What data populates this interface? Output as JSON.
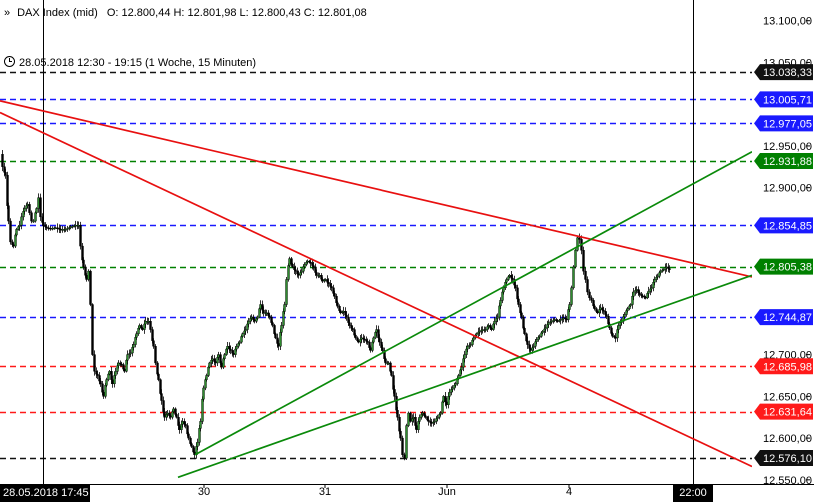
{
  "header": {
    "chevron": "»",
    "instrument": "DAX Index (mid)",
    "ohlc": "O: 12.800,44  H: 12.801,98  L: 12.800,43  C: 12.801,08",
    "range": "28.05.2018 12:30 - 19:15  (1 Woche, 15 Minuten)"
  },
  "chart_data": {
    "type": "candlestick",
    "instrument": "DAX Index (mid)",
    "timeframe": "15 Minuten",
    "ylim": [
      12545,
      13120
    ],
    "y_ticks": [
      "13.100,00",
      "13.050,00",
      "12.950,00",
      "12.900,00",
      "12.700,00",
      "12.650,00",
      "12.600,00",
      "12.550,00"
    ],
    "x_ticks": [
      "30",
      "31",
      "Jun",
      "4"
    ],
    "crosshair": {
      "date_label": "28.05.2018 17:45",
      "time_label": "22:00"
    },
    "price_path": [
      [
        0,
        12940
      ],
      [
        2,
        12925
      ],
      [
        5,
        12915
      ],
      [
        8,
        12860
      ],
      [
        10,
        12835
      ],
      [
        13,
        12830
      ],
      [
        16,
        12850
      ],
      [
        19,
        12855
      ],
      [
        21,
        12865
      ],
      [
        24,
        12875
      ],
      [
        27,
        12880
      ],
      [
        29,
        12870
      ],
      [
        31,
        12860
      ],
      [
        33,
        12860
      ],
      [
        36,
        12875
      ],
      [
        38,
        12888
      ],
      [
        40,
        12865
      ],
      [
        43,
        12855
      ],
      [
        46,
        12852
      ],
      [
        50,
        12851
      ],
      [
        55,
        12852
      ],
      [
        60,
        12850
      ],
      [
        65,
        12850
      ],
      [
        70,
        12853
      ],
      [
        75,
        12855
      ],
      [
        78,
        12855
      ],
      [
        80,
        12830
      ],
      [
        83,
        12805
      ],
      [
        86,
        12790
      ],
      [
        88,
        12800
      ],
      [
        90,
        12760
      ],
      [
        92,
        12700
      ],
      [
        94,
        12680
      ],
      [
        97,
        12675
      ],
      [
        100,
        12665
      ],
      [
        103,
        12650
      ],
      [
        106,
        12670
      ],
      [
        109,
        12680
      ],
      [
        112,
        12665
      ],
      [
        115,
        12680
      ],
      [
        118,
        12690
      ],
      [
        121,
        12688
      ],
      [
        124,
        12680
      ],
      [
        127,
        12700
      ],
      [
        130,
        12702
      ],
      [
        133,
        12712
      ],
      [
        136,
        12725
      ],
      [
        139,
        12735
      ],
      [
        142,
        12730
      ],
      [
        145,
        12740
      ],
      [
        148,
        12740
      ],
      [
        150,
        12730
      ],
      [
        153,
        12710
      ],
      [
        155,
        12690
      ],
      [
        158,
        12670
      ],
      [
        161,
        12645
      ],
      [
        164,
        12625
      ],
      [
        167,
        12630
      ],
      [
        170,
        12625
      ],
      [
        173,
        12635
      ],
      [
        176,
        12625
      ],
      [
        179,
        12610
      ],
      [
        182,
        12620
      ],
      [
        185,
        12615
      ],
      [
        188,
        12600
      ],
      [
        191,
        12590
      ],
      [
        194,
        12580
      ],
      [
        197,
        12595
      ],
      [
        200,
        12620
      ],
      [
        203,
        12660
      ],
      [
        206,
        12675
      ],
      [
        209,
        12690
      ],
      [
        212,
        12695
      ],
      [
        215,
        12690
      ],
      [
        218,
        12700
      ],
      [
        221,
        12685
      ],
      [
        224,
        12700
      ],
      [
        227,
        12710
      ],
      [
        230,
        12705
      ],
      [
        233,
        12700
      ],
      [
        236,
        12710
      ],
      [
        239,
        12715
      ],
      [
        242,
        12725
      ],
      [
        245,
        12730
      ],
      [
        248,
        12740
      ],
      [
        251,
        12745
      ],
      [
        254,
        12740
      ],
      [
        257,
        12745
      ],
      [
        260,
        12760
      ],
      [
        263,
        12750
      ],
      [
        266,
        12750
      ],
      [
        269,
        12745
      ],
      [
        272,
        12735
      ],
      [
        275,
        12720
      ],
      [
        278,
        12710
      ],
      [
        281,
        12735
      ],
      [
        284,
        12760
      ],
      [
        286,
        12790
      ],
      [
        289,
        12815
      ],
      [
        292,
        12805
      ],
      [
        295,
        12800
      ],
      [
        298,
        12795
      ],
      [
        301,
        12800
      ],
      [
        304,
        12808
      ],
      [
        307,
        12812
      ],
      [
        310,
        12810
      ],
      [
        313,
        12805
      ],
      [
        316,
        12795
      ],
      [
        319,
        12795
      ],
      [
        322,
        12788
      ],
      [
        325,
        12790
      ],
      [
        328,
        12785
      ],
      [
        331,
        12780
      ],
      [
        334,
        12770
      ],
      [
        337,
        12758
      ],
      [
        340,
        12750
      ],
      [
        343,
        12752
      ],
      [
        346,
        12745
      ],
      [
        349,
        12735
      ],
      [
        352,
        12730
      ],
      [
        355,
        12720
      ],
      [
        358,
        12715
      ],
      [
        361,
        12720
      ],
      [
        364,
        12718
      ],
      [
        367,
        12715
      ],
      [
        370,
        12705
      ],
      [
        373,
        12720
      ],
      [
        376,
        12730
      ],
      [
        379,
        12715
      ],
      [
        382,
        12705
      ],
      [
        385,
        12690
      ],
      [
        388,
        12690
      ],
      [
        391,
        12675
      ],
      [
        394,
        12650
      ],
      [
        397,
        12625
      ],
      [
        400,
        12600
      ],
      [
        402,
        12580
      ],
      [
        404,
        12576
      ],
      [
        406,
        12615
      ],
      [
        408,
        12630
      ],
      [
        410,
        12620
      ],
      [
        413,
        12625
      ],
      [
        416,
        12610
      ],
      [
        419,
        12625
      ],
      [
        422,
        12630
      ],
      [
        425,
        12625
      ],
      [
        428,
        12620
      ],
      [
        431,
        12618
      ],
      [
        434,
        12620
      ],
      [
        437,
        12625
      ],
      [
        440,
        12630
      ],
      [
        443,
        12650
      ],
      [
        446,
        12640
      ],
      [
        449,
        12655
      ],
      [
        452,
        12660
      ],
      [
        455,
        12665
      ],
      [
        458,
        12675
      ],
      [
        461,
        12685
      ],
      [
        464,
        12700
      ],
      [
        467,
        12710
      ],
      [
        470,
        12712
      ],
      [
        473,
        12720
      ],
      [
        476,
        12725
      ],
      [
        479,
        12728
      ],
      [
        482,
        12730
      ],
      [
        485,
        12730
      ],
      [
        488,
        12735
      ],
      [
        491,
        12730
      ],
      [
        494,
        12740
      ],
      [
        497,
        12745
      ],
      [
        500,
        12765
      ],
      [
        503,
        12780
      ],
      [
        506,
        12790
      ],
      [
        509,
        12795
      ],
      [
        512,
        12790
      ],
      [
        515,
        12780
      ],
      [
        518,
        12760
      ],
      [
        521,
        12745
      ],
      [
        524,
        12725
      ],
      [
        527,
        12712
      ],
      [
        530,
        12705
      ],
      [
        533,
        12710
      ],
      [
        536,
        12718
      ],
      [
        539,
        12722
      ],
      [
        542,
        12728
      ],
      [
        545,
        12732
      ],
      [
        548,
        12738
      ],
      [
        551,
        12740
      ],
      [
        554,
        12742
      ],
      [
        557,
        12740
      ],
      [
        560,
        12742
      ],
      [
        563,
        12744
      ],
      [
        566,
        12742
      ],
      [
        569,
        12760
      ],
      [
        571,
        12780
      ],
      [
        573,
        12805
      ],
      [
        575,
        12825
      ],
      [
        577,
        12840
      ],
      [
        579,
        12838
      ],
      [
        581,
        12825
      ],
      [
        583,
        12800
      ],
      [
        585,
        12790
      ],
      [
        587,
        12775
      ],
      [
        589,
        12768
      ],
      [
        591,
        12765
      ],
      [
        594,
        12755
      ],
      [
        597,
        12750
      ],
      [
        600,
        12756
      ],
      [
        603,
        12752
      ],
      [
        606,
        12746
      ],
      [
        609,
        12732
      ],
      [
        612,
        12722
      ],
      [
        615,
        12720
      ],
      [
        618,
        12735
      ],
      [
        621,
        12740
      ],
      [
        624,
        12748
      ],
      [
        627,
        12755
      ],
      [
        630,
        12760
      ],
      [
        633,
        12775
      ],
      [
        636,
        12778
      ],
      [
        639,
        12772
      ],
      [
        642,
        12770
      ],
      [
        645,
        12768
      ],
      [
        648,
        12776
      ],
      [
        651,
        12780
      ],
      [
        654,
        12790
      ],
      [
        657,
        12794
      ],
      [
        660,
        12800
      ],
      [
        663,
        12802
      ],
      [
        666,
        12805
      ],
      [
        669,
        12802
      ]
    ],
    "horizontal_levels": [
      {
        "label": "13.038,33",
        "value": 13038.33,
        "color": "#111111"
      },
      {
        "label": "13.005,71",
        "value": 13005.71,
        "color": "#1a1aff"
      },
      {
        "label": "12.977,05",
        "value": 12977.05,
        "color": "#1a1aff"
      },
      {
        "label": "12.931,88",
        "value": 12931.88,
        "color": "#008000"
      },
      {
        "label": "12.854,85",
        "value": 12854.85,
        "color": "#1a1aff"
      },
      {
        "label": "12.805,38",
        "value": 12805.38,
        "color": "#008000"
      },
      {
        "label": "12.744,87",
        "value": 12744.87,
        "color": "#1a1aff"
      },
      {
        "label": "12.685,98",
        "value": 12685.98,
        "color": "#ff1a1a"
      },
      {
        "label": "12.631,64",
        "value": 12631.64,
        "color": "#ff1a1a"
      },
      {
        "label": "12.576,10",
        "value": 12576.1,
        "color": "#111111"
      }
    ],
    "trendlines": [
      {
        "name": "downtrend-upper",
        "color": "#e81010",
        "points": [
          [
            0,
            13004
          ],
          [
            752,
            12793
          ]
        ]
      },
      {
        "name": "downtrend-lower",
        "color": "#e81010",
        "points": [
          [
            0,
            12990
          ],
          [
            752,
            12566
          ]
        ]
      },
      {
        "name": "uptrend-lower",
        "color": "#0a8a0a",
        "points": [
          [
            178,
            12553
          ],
          [
            752,
            12795
          ]
        ]
      },
      {
        "name": "uptrend-upper",
        "color": "#0a8a0a",
        "points": [
          [
            195,
            12580
          ],
          [
            752,
            12943
          ]
        ]
      }
    ],
    "colors": {
      "price": "#000000",
      "candle_up": "#2e8b2e",
      "axis": "#000000",
      "label_text_dark": "#ffffff"
    }
  }
}
